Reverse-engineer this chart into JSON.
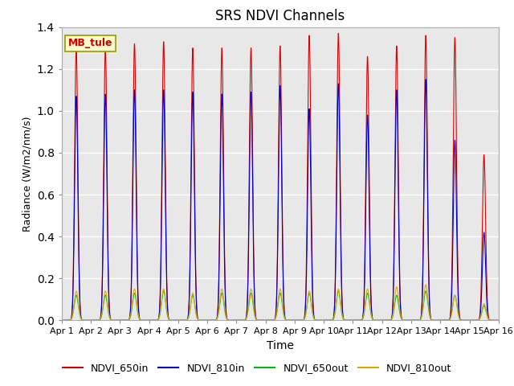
{
  "title": "SRS NDVI Channels",
  "xlabel": "Time",
  "ylabel": "Radiance (W/m2/nm/s)",
  "annotation": "MB_tule",
  "ylim": [
    0,
    1.4
  ],
  "background_color": "#e8e8e8",
  "plot_bg_color": "#e8e8e8",
  "lines": [
    "NDVI_650in",
    "NDVI_810in",
    "NDVI_650out",
    "NDVI_810out"
  ],
  "line_colors": [
    "#dd0000",
    "#0000cc",
    "#00bb00",
    "#ddaa00"
  ],
  "peaks_650in": [
    1.3,
    1.3,
    1.32,
    1.33,
    1.3,
    1.3,
    1.3,
    1.31,
    1.36,
    1.37,
    1.26,
    1.31,
    1.36,
    1.35,
    0.79
  ],
  "peaks_810in": [
    1.07,
    1.08,
    1.1,
    1.1,
    1.09,
    1.08,
    1.09,
    1.12,
    1.01,
    1.13,
    0.98,
    1.1,
    1.15,
    0.86,
    0.42
  ],
  "peaks_650out": [
    0.12,
    0.12,
    0.13,
    0.14,
    0.12,
    0.13,
    0.13,
    0.13,
    0.13,
    0.14,
    0.13,
    0.12,
    0.14,
    0.12,
    0.07
  ],
  "peaks_810out": [
    0.14,
    0.14,
    0.15,
    0.15,
    0.13,
    0.15,
    0.15,
    0.15,
    0.14,
    0.15,
    0.15,
    0.16,
    0.17,
    0.12,
    0.08
  ],
  "day_labels": [
    "Apr 1",
    "Apr 2",
    "Apr 3",
    "Apr 4",
    "Apr 5",
    "Apr 6",
    "Apr 7",
    "Apr 8",
    "Apr 9",
    "Apr 10",
    "Apr 11",
    "Apr 12",
    "Apr 13",
    "Apr 14",
    "Apr 15",
    "Apr 16"
  ],
  "tick_positions": [
    0,
    1,
    2,
    3,
    4,
    5,
    6,
    7,
    8,
    9,
    10,
    11,
    12,
    13,
    14,
    15
  ],
  "sigma_large": 0.055,
  "sigma_small": 0.07
}
